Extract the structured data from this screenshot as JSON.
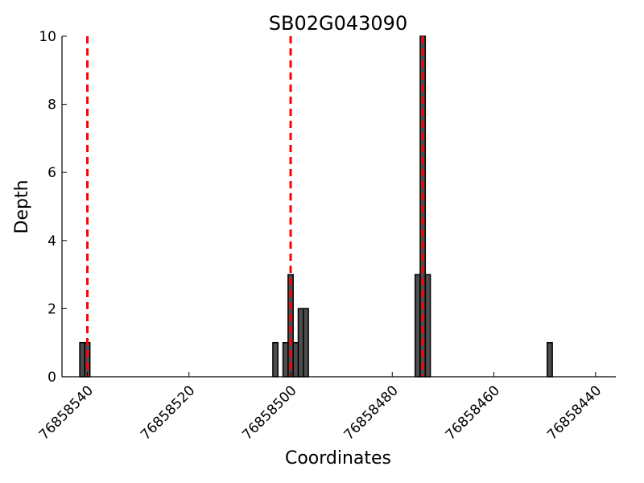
{
  "chart_data": {
    "type": "bar",
    "title": "SB02G043090",
    "xlabel": "Coordinates",
    "ylabel": "Depth",
    "xlim": [
      76858545,
      76858436
    ],
    "ylim": [
      0,
      10
    ],
    "x_reversed": true,
    "xticks": [
      76858540,
      76858520,
      76858500,
      76858480,
      76858460,
      76858440
    ],
    "yticks": [
      0,
      2,
      4,
      6,
      8,
      10
    ],
    "bin_width": 1,
    "bars": [
      {
        "x": 76858541,
        "value": 1
      },
      {
        "x": 76858540,
        "value": 1
      },
      {
        "x": 76858503,
        "value": 1
      },
      {
        "x": 76858501,
        "value": 1
      },
      {
        "x": 76858500,
        "value": 3
      },
      {
        "x": 76858499,
        "value": 1
      },
      {
        "x": 76858498,
        "value": 2
      },
      {
        "x": 76858497,
        "value": 2
      },
      {
        "x": 76858475,
        "value": 3
      },
      {
        "x": 76858474,
        "value": 10
      },
      {
        "x": 76858473,
        "value": 3
      },
      {
        "x": 76858449,
        "value": 1
      }
    ],
    "markers": [
      76858540,
      76858500,
      76858474
    ],
    "bar_color": "#4d4d4d",
    "marker_color": "#ff0000",
    "grid": false
  }
}
